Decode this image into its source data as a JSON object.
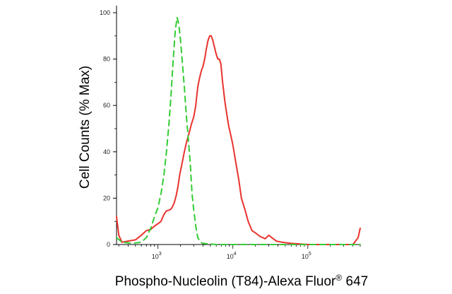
{
  "chart_data": {
    "type": "line",
    "title": "",
    "xlabel": "Phospho-Nucleolin (T84)-Alexa Fluor",
    "xlabel_superscript": "®",
    "xlabel_suffix": " 647",
    "ylabel": "Cell Counts (% Max)",
    "x_scale": "log",
    "xlim": [
      280,
      500000
    ],
    "ylim": [
      0,
      100
    ],
    "y_ticks": [
      {
        "value": 0,
        "label": "0"
      },
      {
        "value": 20,
        "label": "20"
      },
      {
        "value": 40,
        "label": "40"
      },
      {
        "value": 60,
        "label": "60"
      },
      {
        "value": 80,
        "label": "80"
      },
      {
        "value": 100,
        "label": "100"
      }
    ],
    "x_ticks": [
      {
        "value": 1000,
        "label_base": "10",
        "label_exp": "3"
      },
      {
        "value": 10000,
        "label_base": "10",
        "label_exp": "4"
      },
      {
        "value": 100000,
        "label_base": "10",
        "label_exp": "5"
      }
    ],
    "grid": false,
    "series": [
      {
        "color": "#e8332d",
        "dash": "solid",
        "points": [
          [
            280,
            12
          ],
          [
            300,
            4
          ],
          [
            330,
            1
          ],
          [
            400,
            1.5
          ],
          [
            500,
            2
          ],
          [
            600,
            4
          ],
          [
            700,
            6
          ],
          [
            800,
            6.5
          ],
          [
            900,
            8
          ],
          [
            1000,
            9
          ],
          [
            1100,
            10
          ],
          [
            1200,
            13
          ],
          [
            1300,
            14.5
          ],
          [
            1450,
            15
          ],
          [
            1550,
            16
          ],
          [
            1650,
            18
          ],
          [
            1750,
            21
          ],
          [
            1850,
            25
          ],
          [
            1950,
            30
          ],
          [
            2100,
            35
          ],
          [
            2250,
            40
          ],
          [
            2400,
            44
          ],
          [
            2600,
            48
          ],
          [
            2800,
            52
          ],
          [
            3000,
            55
          ],
          [
            3200,
            60
          ],
          [
            3400,
            68
          ],
          [
            3600,
            72
          ],
          [
            3800,
            75
          ],
          [
            4000,
            77
          ],
          [
            4200,
            80
          ],
          [
            4400,
            84
          ],
          [
            4650,
            88
          ],
          [
            4900,
            90
          ],
          [
            5150,
            90
          ],
          [
            5400,
            88
          ],
          [
            5700,
            85
          ],
          [
            6000,
            82
          ],
          [
            6300,
            80
          ],
          [
            6600,
            80
          ],
          [
            6900,
            78
          ],
          [
            7300,
            70
          ],
          [
            7800,
            62
          ],
          [
            8300,
            56
          ],
          [
            8800,
            51
          ],
          [
            9400,
            47
          ],
          [
            10000,
            43
          ],
          [
            11000,
            35
          ],
          [
            12000,
            28
          ],
          [
            13000,
            20
          ],
          [
            14500,
            15
          ],
          [
            16000,
            10
          ],
          [
            18000,
            6
          ],
          [
            20000,
            5
          ],
          [
            23000,
            3.5
          ],
          [
            27000,
            2.5
          ],
          [
            30000,
            4
          ],
          [
            33000,
            3
          ],
          [
            38000,
            1.5
          ],
          [
            45000,
            1
          ],
          [
            60000,
            0.5
          ],
          [
            100000,
            0
          ],
          [
            200000,
            0
          ],
          [
            400000,
            0
          ],
          [
            470000,
            3
          ],
          [
            500000,
            7
          ]
        ]
      },
      {
        "color": "#33cc33",
        "dash": "dashed",
        "points": [
          [
            280,
            3
          ],
          [
            330,
            1
          ],
          [
            450,
            0.5
          ],
          [
            600,
            1
          ],
          [
            700,
            3
          ],
          [
            800,
            7
          ],
          [
            900,
            12
          ],
          [
            1000,
            16
          ],
          [
            1100,
            22
          ],
          [
            1200,
            30
          ],
          [
            1300,
            40
          ],
          [
            1400,
            52
          ],
          [
            1500,
            65
          ],
          [
            1600,
            80
          ],
          [
            1700,
            92
          ],
          [
            1800,
            98
          ],
          [
            1900,
            95
          ],
          [
            2000,
            88
          ],
          [
            2100,
            80
          ],
          [
            2250,
            68
          ],
          [
            2400,
            55
          ],
          [
            2550,
            45
          ],
          [
            2700,
            35
          ],
          [
            2850,
            22
          ],
          [
            3000,
            15
          ],
          [
            3200,
            8
          ],
          [
            3400,
            3
          ],
          [
            3700,
            1
          ],
          [
            4000,
            0.5
          ],
          [
            6000,
            0
          ],
          [
            20000,
            0
          ],
          [
            100000,
            0
          ],
          [
            500000,
            0
          ]
        ]
      }
    ]
  }
}
